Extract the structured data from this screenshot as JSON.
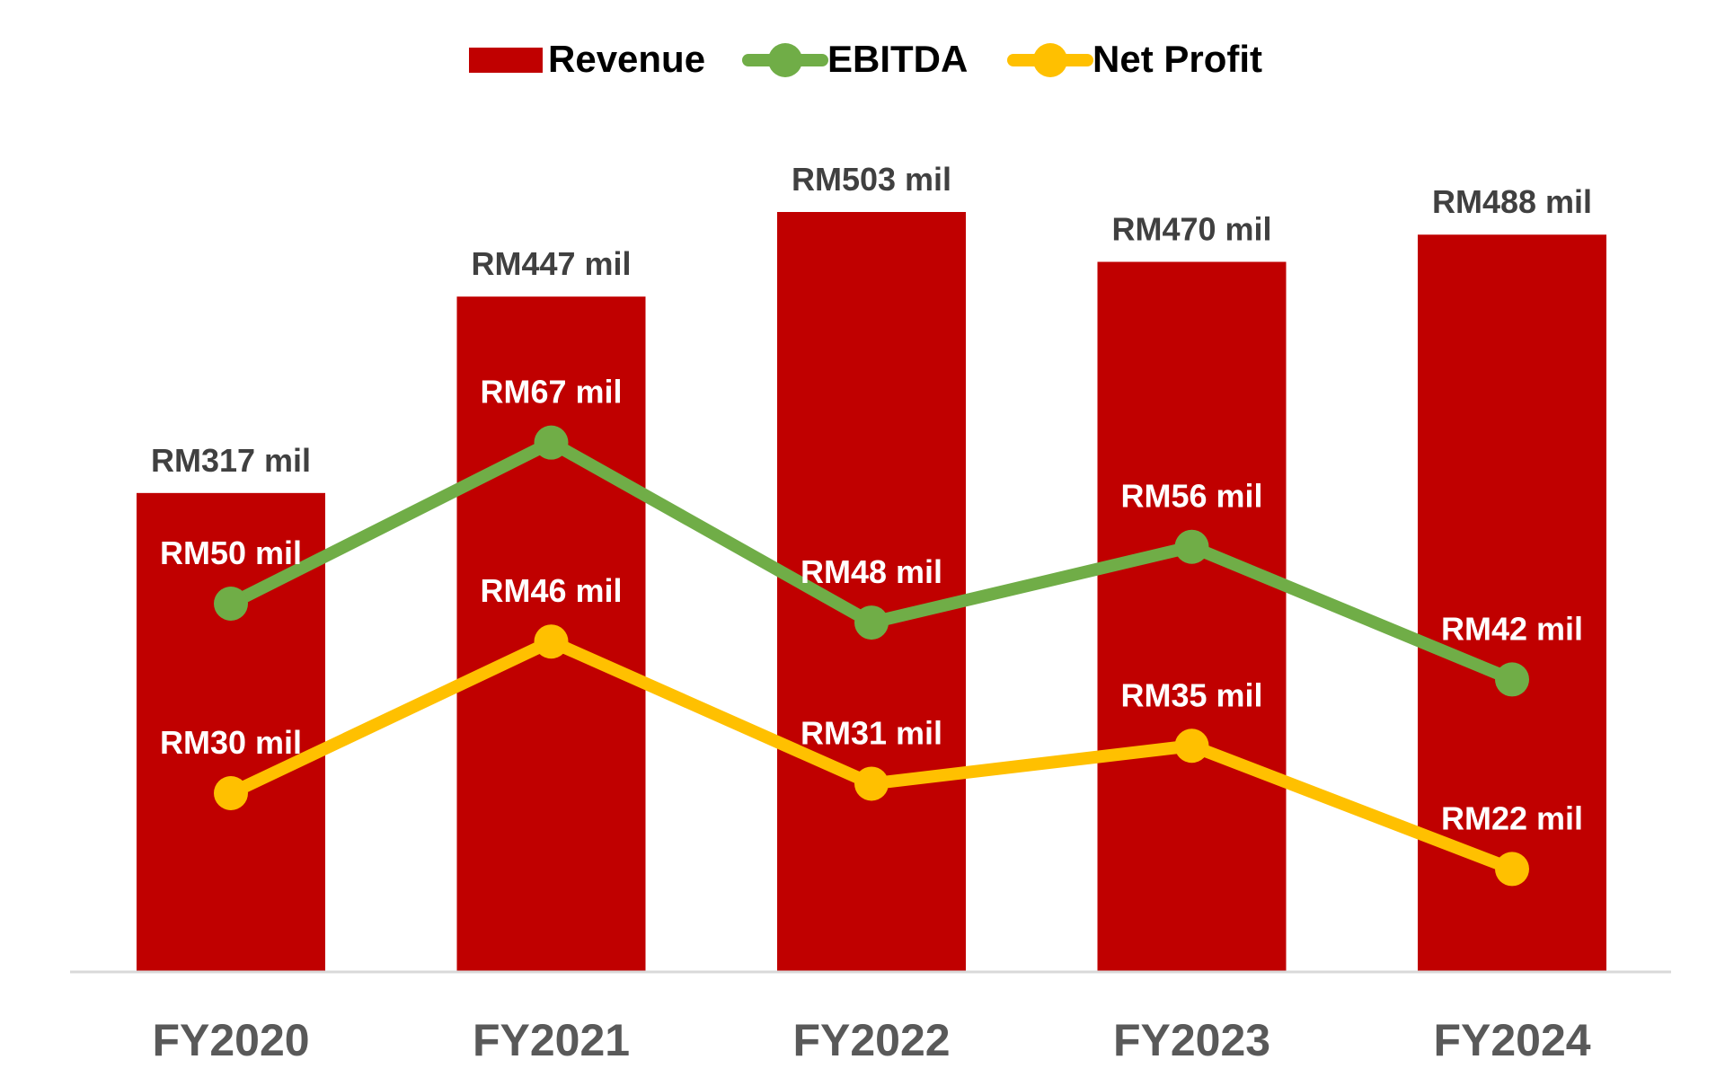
{
  "chart_data": {
    "type": "bar",
    "categories": [
      "FY2020",
      "FY2021",
      "FY2022",
      "FY2023",
      "FY2024"
    ],
    "series": [
      {
        "name": "Revenue",
        "kind": "bar",
        "color": "#C00000",
        "values": [
          317,
          447,
          503,
          470,
          488
        ],
        "labels": [
          "RM317 mil",
          "RM447 mil",
          "RM503 mil",
          "RM470 mil",
          "RM488 mil"
        ]
      },
      {
        "name": "EBITDA",
        "kind": "line",
        "color": "#70AD47",
        "values": [
          50,
          67,
          48,
          56,
          42
        ],
        "labels": [
          "RM50 mil",
          "RM67 mil",
          "RM48 mil",
          "RM56 mil",
          "RM42 mil"
        ]
      },
      {
        "name": "Net Profit",
        "kind": "line",
        "color": "#FFC000",
        "values": [
          30,
          46,
          31,
          35,
          22
        ],
        "labels": [
          "RM30 mil",
          "RM46 mil",
          "RM31 mil",
          "RM35 mil",
          "RM22 mil"
        ]
      }
    ],
    "bar_axis": {
      "ylim": [
        0,
        503
      ]
    },
    "line_axis": {
      "ylim": [
        -10,
        82
      ]
    },
    "grid": false,
    "legend_position": "top-center",
    "title": "",
    "xlabel": "",
    "ylabel": ""
  }
}
